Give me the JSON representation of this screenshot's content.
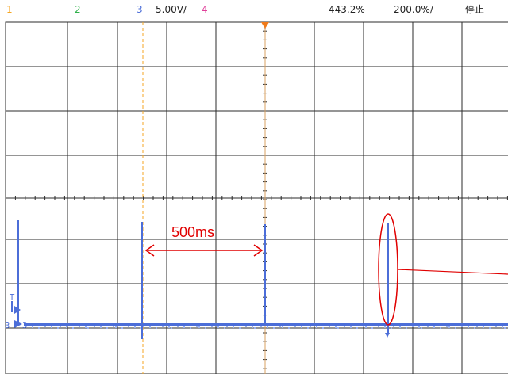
{
  "topbar": {
    "ch1": "1",
    "ch2": "2",
    "ch3": "3",
    "ch3_scale": "5.00V/",
    "ch4": "4",
    "timebase_position": "443.2%",
    "timebase_scale": "200.0%/",
    "run_status": "停止"
  },
  "colors": {
    "ch1": "#f5a623",
    "ch2": "#2fb14a",
    "ch3": "#4c6ed8",
    "ch4": "#e0409a",
    "grid": "#2b2b2b",
    "annotation": "#e00000",
    "trigger_marker": "#f07a1a"
  },
  "annotation": {
    "label": "500ms"
  },
  "markers": {
    "trigger": "T",
    "channel_ground": "3"
  }
}
